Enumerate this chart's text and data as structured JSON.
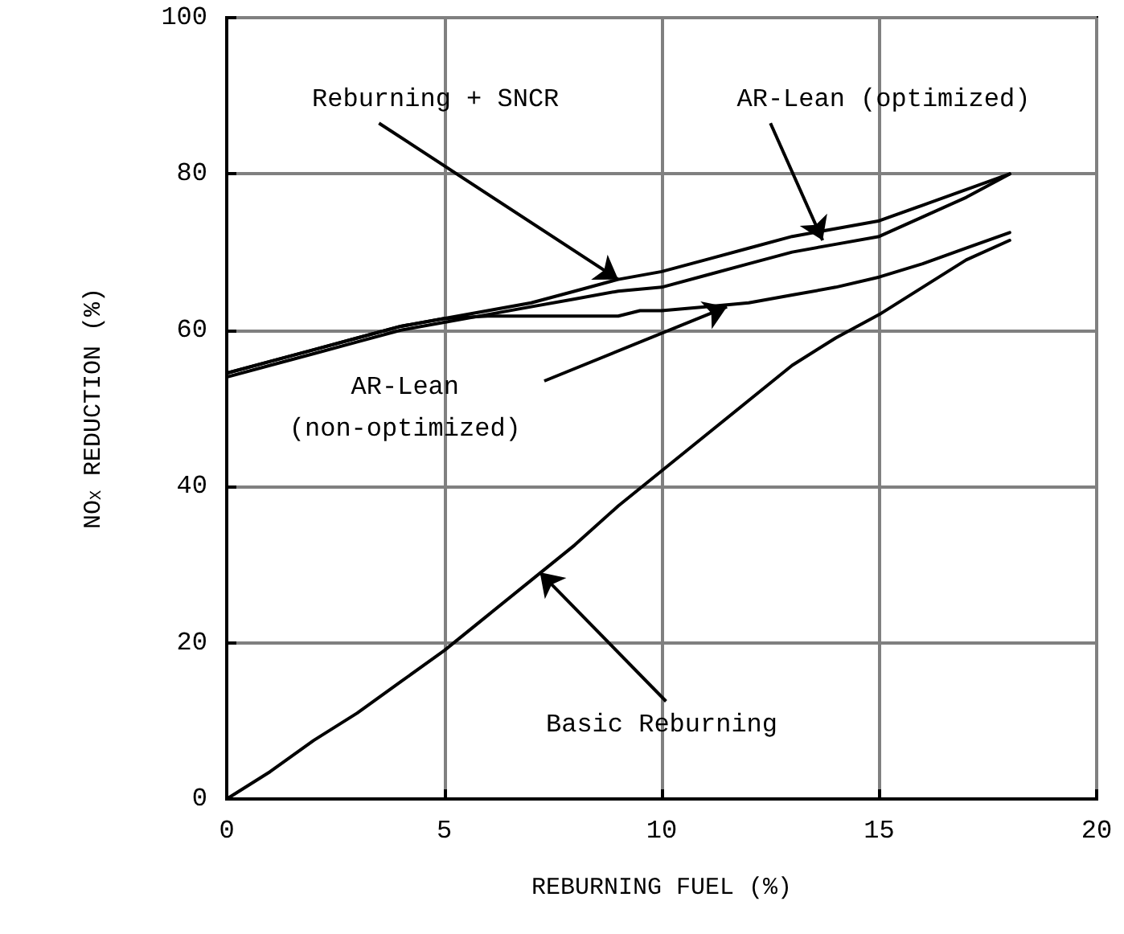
{
  "chart_data": {
    "type": "line",
    "xlabel": "REBURNING FUEL (%)",
    "ylabel": "NO$_{X}$ REDUCTION (%)",
    "xlim": [
      0,
      20
    ],
    "xticks": [
      0,
      5,
      10,
      15,
      20
    ],
    "ylim": [
      0,
      100
    ],
    "yticks": [
      0,
      20,
      40,
      60,
      80,
      100
    ],
    "grid": true,
    "marker": "none",
    "line_style": "solid",
    "series": [
      {
        "color": "#000000",
        "x": [
          0,
          1,
          2,
          3,
          4,
          5,
          6,
          7,
          8,
          9,
          10,
          11,
          12,
          13,
          14,
          15,
          16,
          17,
          18
        ],
        "values": [
          54.5,
          56,
          57.5,
          59,
          60.5,
          61.5,
          62.5,
          63.5,
          65,
          66.5,
          67.5,
          69,
          70.5,
          72,
          73,
          74,
          76,
          78,
          80
        ]
      },
      {
        "color": "#000000",
        "x": [
          0,
          1,
          2,
          3,
          4,
          5,
          6,
          7,
          8,
          9,
          10,
          11,
          12,
          13,
          14,
          15,
          16,
          17,
          18
        ],
        "values": [
          54,
          55.5,
          57,
          58.5,
          60,
          61,
          62,
          63,
          64,
          65,
          65.5,
          67,
          68.5,
          70,
          71,
          72,
          74.5,
          77,
          80
        ]
      },
      {
        "color": "#000000",
        "x": [
          0,
          1,
          2,
          3,
          4,
          5,
          6,
          7,
          8,
          9,
          9.5,
          10,
          11,
          12,
          13,
          14,
          15,
          16,
          17,
          18
        ],
        "values": [
          54.5,
          56,
          57.5,
          59,
          60.5,
          61.5,
          61.8,
          61.8,
          61.8,
          61.8,
          62.5,
          62.5,
          63,
          63.5,
          64.5,
          65.5,
          66.8,
          68.5,
          70.5,
          72.5
        ]
      },
      {
        "color": "#000000",
        "x": [
          0,
          1,
          2,
          3,
          4,
          5,
          6,
          7,
          8,
          9,
          10,
          11,
          12,
          13,
          14,
          15,
          16,
          17,
          18
        ],
        "values": [
          0,
          3.5,
          7.5,
          11,
          15,
          19,
          23.5,
          28,
          32.5,
          37.5,
          42,
          46.5,
          51,
          55.5,
          59,
          62,
          65.5,
          69,
          71.5
        ]
      }
    ],
    "annotations": [
      {
        "text": "Reburning + SNCR",
        "x": 9,
        "y": 66.5
      },
      {
        "text": "AR-Lean (optimized)",
        "x": 13.7,
        "y": 71.5
      },
      {
        "text": "AR-Lean\n(non-optimized)",
        "x": 11.5,
        "y": 63
      },
      {
        "text": "Basic Reburning",
        "x": 7.2,
        "y": 29
      }
    ]
  }
}
